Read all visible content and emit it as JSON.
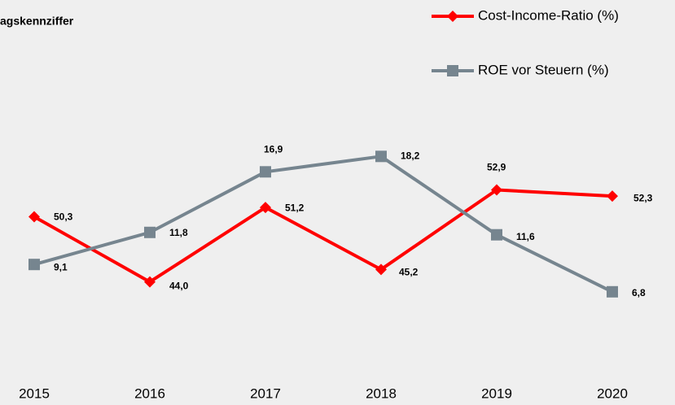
{
  "chart_data": {
    "type": "line",
    "title": "agskennziffer",
    "categories": [
      "2015",
      "2016",
      "2017",
      "2018",
      "2019",
      "2020"
    ],
    "series": [
      {
        "name": "Cost-Income-Ratio (%)",
        "color": "#ff0000",
        "marker": "diamond",
        "values": [
          50.3,
          44.0,
          51.2,
          45.2,
          52.9,
          52.3
        ],
        "value_labels": [
          "50,3",
          "44,0",
          "51,2",
          "45,2",
          "52,9",
          "52,3"
        ]
      },
      {
        "name": "ROE vor Steuern (%)",
        "color": "#76858f",
        "marker": "square",
        "axis": "y2",
        "values": [
          9.1,
          11.8,
          16.9,
          18.2,
          11.6,
          6.8
        ],
        "value_labels": [
          "9,1",
          "11,8",
          "16,9",
          "18,2",
          "11,6",
          "6,8"
        ]
      }
    ],
    "ylim": [
      33.5,
      69.7
    ],
    "y2lim": [
      -1.5,
      30
    ],
    "grid": false
  }
}
